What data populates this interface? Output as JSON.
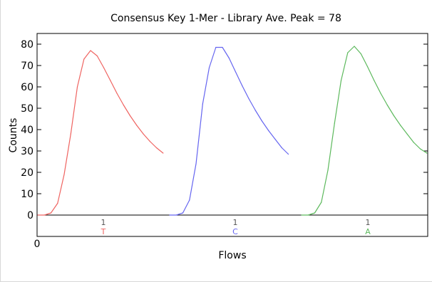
{
  "chart_data": {
    "type": "line",
    "title": "Consensus Key 1-Mer - Library Ave. Peak = 78",
    "xlabel": "Flows",
    "ylabel": "Counts",
    "ylim": [
      -10,
      85
    ],
    "y_ticks": [
      "0",
      "10",
      "20",
      "30",
      "40",
      "50",
      "60",
      "70",
      "80"
    ],
    "x_tick_label": "0",
    "grid": false,
    "series": [
      {
        "color": "#ef6461",
        "flow_count_label": "1",
        "nuc_label": "T",
        "points": [
          [
            0,
            0
          ],
          [
            1,
            0
          ],
          [
            2,
            1
          ],
          [
            3,
            5.5
          ],
          [
            4,
            19
          ],
          [
            5,
            38
          ],
          [
            6,
            60
          ],
          [
            7,
            73
          ],
          [
            8,
            77
          ],
          [
            9,
            74.5
          ],
          [
            10,
            69
          ],
          [
            11,
            63
          ],
          [
            12,
            57
          ],
          [
            13,
            51.5
          ],
          [
            14,
            46.5
          ],
          [
            15,
            42
          ],
          [
            16,
            38
          ],
          [
            17,
            34.5
          ],
          [
            18,
            31.5
          ],
          [
            19,
            29
          ]
        ]
      },
      {
        "color": "#6565f0",
        "flow_count_label": "1",
        "nuc_label": "C",
        "points": [
          [
            0,
            0
          ],
          [
            1,
            0
          ],
          [
            2,
            1
          ],
          [
            3,
            7
          ],
          [
            4,
            24
          ],
          [
            5,
            52
          ],
          [
            6,
            69
          ],
          [
            7,
            78.5
          ],
          [
            8,
            78.5
          ],
          [
            9,
            73.5
          ],
          [
            10,
            67
          ],
          [
            11,
            60.5
          ],
          [
            12,
            54.5
          ],
          [
            13,
            49
          ],
          [
            14,
            44
          ],
          [
            15,
            39.5
          ],
          [
            16,
            35.5
          ],
          [
            17,
            31.5
          ],
          [
            18,
            28.5
          ]
        ]
      },
      {
        "color": "#5db95d",
        "flow_count_label": "1",
        "nuc_label": "A",
        "points": [
          [
            0,
            0
          ],
          [
            1,
            0
          ],
          [
            2,
            1
          ],
          [
            3,
            6
          ],
          [
            4,
            21
          ],
          [
            5,
            43
          ],
          [
            6,
            63
          ],
          [
            7,
            76
          ],
          [
            8,
            79
          ],
          [
            9,
            75.5
          ],
          [
            10,
            69.5
          ],
          [
            11,
            63
          ],
          [
            12,
            57
          ],
          [
            13,
            51.5
          ],
          [
            14,
            46.5
          ],
          [
            15,
            42
          ],
          [
            16,
            38
          ],
          [
            17,
            34
          ],
          [
            18,
            31
          ],
          [
            19,
            29
          ]
        ]
      }
    ]
  }
}
